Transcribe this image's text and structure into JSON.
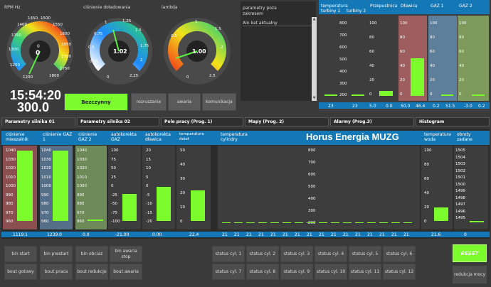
{
  "gauges": [
    {
      "label": "RPM Hz",
      "value": "0",
      "unit": "0",
      "ticks": [
        "1350",
        "1400",
        "1450",
        "1500",
        "1550",
        "1600",
        "1650",
        "1700",
        "1750",
        "1800",
        "1200",
        "1250",
        "1300"
      ]
    },
    {
      "label": "ciśnienie doładowania",
      "value": "1.02",
      "ticks": [
        "0.75",
        "1",
        "1.25",
        "1.5",
        "1.75",
        "2",
        "2.25",
        "0.5",
        "0.25",
        "0"
      ]
    },
    {
      "label": "lambda",
      "value": "1.00",
      "ticks": [
        "1",
        "1.5",
        "2",
        "2.5",
        "0.5",
        "0"
      ]
    }
  ],
  "clock": {
    "time": "15:54:20",
    "value": "300.0"
  },
  "status_buttons": [
    "Bezczynny",
    "rozruszanie",
    "awaria",
    "komunikacja"
  ],
  "alarm_panel": {
    "title": "parametry poza zakresem",
    "row": "Ain kat aktualny"
  },
  "top_bars": {
    "headers": [
      "temperatura turbiny 1",
      "turbiny 2",
      "Przepustnica",
      "Dławica",
      "GAZ 1",
      "GAZ 2"
    ],
    "ticks_temp": [
      "800",
      "700",
      "600",
      "500",
      "400",
      "300",
      "200"
    ],
    "ticks_pct": [
      "100",
      "80",
      "60",
      "40",
      "20",
      "0"
    ],
    "ticks_gaz": [
      "100",
      "80",
      "60",
      "40",
      "20",
      "0"
    ],
    "values": [
      "23",
      "23",
      "5.0",
      "0.0",
      "50.0",
      "46.4",
      "0.2",
      "51.5",
      "-3.0",
      "0.2"
    ]
  },
  "tabs": [
    "Parametry silnika 01",
    "Parametry silnika 02",
    "Pole pracy (Prog. 1)",
    "Mapy (Prog. 2)",
    "Alarmy (Prog.3)",
    "Histogram"
  ],
  "brand": "Horus Energia MUZG",
  "main_headers": [
    "ciśnienie mieszalnik",
    "ciśnienie GAZ 1",
    "ciśnienie GAZ 2",
    "autokorekta GAZ",
    "autokorekta dławica",
    "temperatura dolot",
    "temperatura cylindry",
    "temperatura woda",
    "obroty zadane"
  ],
  "main_ticks": {
    "press": [
      "1040",
      "1030",
      "1020",
      "1010",
      "1000",
      "990",
      "980",
      "970",
      "960"
    ],
    "auto": [
      "100",
      "75",
      "50",
      "25",
      "0",
      "-25",
      "-50",
      "-75",
      "-100"
    ],
    "auto2": [
      "20",
      "15",
      "10",
      "5",
      "0",
      "-5",
      "-10",
      "-15",
      "-20"
    ],
    "dolot": [
      "50",
      "40",
      "30",
      "20",
      "10",
      "0"
    ],
    "cyl": [
      "800",
      "700",
      "600",
      "500",
      "400",
      "300",
      "200"
    ],
    "woda": [
      "100",
      "80",
      "60",
      "40",
      "20",
      "0"
    ],
    "obroty": [
      "1505",
      "1504",
      "1503",
      "1502",
      "1501",
      "1500",
      "1499",
      "1498",
      "1497",
      "1496",
      "1495"
    ]
  },
  "main_values": [
    "1119.1",
    "1239.0",
    "0.0",
    "-21.00",
    "0.00",
    "22.4",
    "21",
    "21",
    "21",
    "21",
    "21",
    "21",
    "21",
    "21",
    "21",
    "21",
    "21",
    "21",
    "21",
    "21",
    "21",
    "21",
    "21.6",
    "0"
  ],
  "bottom_buttons": [
    [
      "bin start",
      "bin prestart",
      "bin obciaz",
      "bin awaria stop"
    ],
    [
      "bout gotowy",
      "bout praca",
      "bout redukcje",
      "bout awaria"
    ]
  ],
  "status_cyl": [
    [
      "status cyl. 1",
      "status cyl. 2",
      "status cyl. 3",
      "status cyl. 4",
      "status cyl. 5",
      "status cyl. 6"
    ],
    [
      "status cyl. 7",
      "status cyl. 8",
      "status cyl. 9",
      "status cyl. 10",
      "status cyl. 11",
      "status cyl. 12"
    ]
  ],
  "reset": "RESET",
  "redukcja": "redukcja mocy"
}
